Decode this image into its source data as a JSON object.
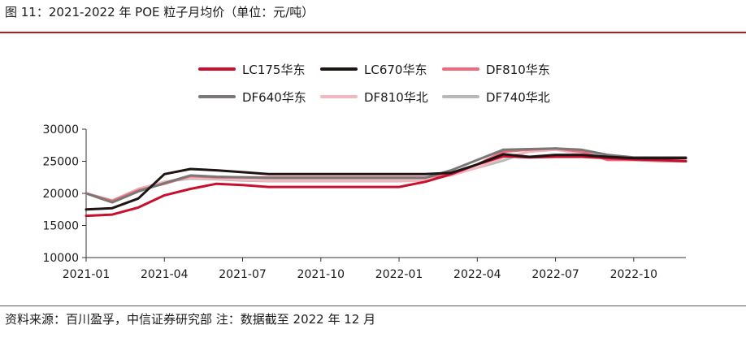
{
  "figure": {
    "title": "图 11：2021-2022 年 POE 粒子月均价（单位：元/吨）",
    "source": "资料来源：百川盈孚，中信证券研究部    注：数据截至 2022 年 12 月"
  },
  "chart_data": {
    "type": "line",
    "title": "",
    "xlabel": "",
    "ylabel": "",
    "ylim": [
      10000,
      30000
    ],
    "yticks": [
      10000,
      15000,
      20000,
      25000,
      30000
    ],
    "ytick_labels": [
      "10000",
      "15000",
      "20000",
      "25000",
      "30000"
    ],
    "xtick_labels": [
      "2021-01",
      "2021-04",
      "2021-07",
      "2021-10",
      "2022-01",
      "2022-04",
      "2022-07",
      "2022-10"
    ],
    "x": [
      "2021-01",
      "2021-02",
      "2021-03",
      "2021-04",
      "2021-05",
      "2021-06",
      "2021-07",
      "2021-08",
      "2021-09",
      "2021-10",
      "2021-11",
      "2021-12",
      "2022-01",
      "2022-02",
      "2022-03",
      "2022-04",
      "2022-05",
      "2022-06",
      "2022-07",
      "2022-08",
      "2022-09",
      "2022-10",
      "2022-11",
      "2022-12"
    ],
    "grid": false,
    "legend_position": "top",
    "series": [
      {
        "name": "LC175华东",
        "color": "#c8102e",
        "values": [
          16500,
          16700,
          17800,
          19700,
          20700,
          21500,
          21300,
          21000,
          21000,
          21000,
          21000,
          21000,
          21000,
          21800,
          23000,
          24500,
          25800,
          25600,
          25700,
          25700,
          25500,
          25300,
          25200,
          25000
        ]
      },
      {
        "name": "LC670华东",
        "color": "#1f1414",
        "values": [
          17500,
          17700,
          19200,
          23000,
          23800,
          23600,
          23300,
          23000,
          23000,
          23000,
          23000,
          23000,
          23000,
          23000,
          23200,
          24500,
          26100,
          25700,
          26000,
          26000,
          25700,
          25500,
          25500,
          25500
        ]
      },
      {
        "name": "DF810华东",
        "color": "#ee6a7c",
        "values": [
          20000,
          18800,
          20500,
          21500,
          22700,
          22500,
          22500,
          22500,
          22500,
          22500,
          22500,
          22500,
          22500,
          22500,
          23000,
          24500,
          26500,
          26800,
          27000,
          26500,
          25200,
          25200,
          25100,
          25000
        ]
      },
      {
        "name": "DF640华东",
        "color": "#7b7777",
        "values": [
          20000,
          18600,
          20300,
          21600,
          22800,
          22600,
          22500,
          22400,
          22400,
          22400,
          22400,
          22400,
          22400,
          22400,
          23600,
          25200,
          26800,
          26900,
          27000,
          26800,
          26000,
          25600,
          25600,
          25600
        ]
      },
      {
        "name": "DF810华北",
        "color": "#f4b7c0",
        "values": [
          20000,
          18800,
          20600,
          21800,
          22500,
          22300,
          22100,
          22000,
          22000,
          22000,
          22000,
          22000,
          22000,
          22000,
          22800,
          24000,
          25600,
          26500,
          26800,
          26200,
          25500,
          25300,
          25200,
          25100
        ]
      },
      {
        "name": "DF740华北",
        "color": "#b9b9b9",
        "values": [
          20000,
          18900,
          20700,
          21800,
          22300,
          22200,
          22000,
          21900,
          21900,
          21900,
          21900,
          21900,
          21900,
          22000,
          22900,
          24000,
          25100,
          26600,
          27000,
          26600,
          25500,
          25200,
          25000,
          25000
        ]
      }
    ]
  }
}
